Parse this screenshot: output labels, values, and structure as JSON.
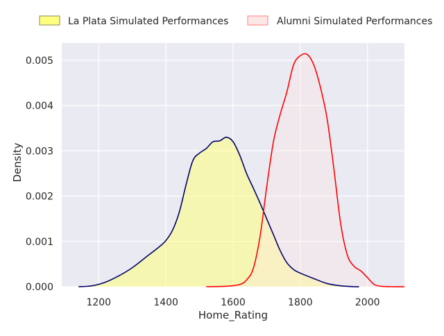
{
  "chart_data": {
    "type": "area",
    "xlabel": "Home_Rating",
    "ylabel": "Density",
    "xlim": [
      1090,
      2110
    ],
    "ylim": [
      0,
      0.00538
    ],
    "x_ticks": [
      1200,
      1400,
      1600,
      1800,
      2000
    ],
    "y_ticks": [
      0.0,
      0.001,
      0.002,
      0.003,
      0.004,
      0.005
    ],
    "y_tick_labels": [
      "0.000",
      "0.001",
      "0.002",
      "0.003",
      "0.004",
      "0.005"
    ],
    "x_tick_labels": [
      "1200",
      "1400",
      "1600",
      "1800",
      "2000"
    ],
    "grid": true,
    "legend_placement": "top",
    "series": [
      {
        "name": "La Plata Simulated Performances",
        "style": "filled-kde",
        "line_color": "#000066",
        "fill_color": "#ffff7f",
        "x": [
          1140,
          1180,
          1220,
          1260,
          1300,
          1340,
          1380,
          1400,
          1420,
          1440,
          1460,
          1480,
          1500,
          1520,
          1540,
          1560,
          1580,
          1600,
          1620,
          1640,
          1660,
          1680,
          1700,
          1720,
          1740,
          1760,
          1780,
          1800,
          1840,
          1880,
          1920,
          1960,
          1975
        ],
        "y": [
          0.0,
          2e-05,
          0.0001,
          0.00024,
          0.00042,
          0.00065,
          0.00088,
          0.00102,
          0.00125,
          0.00165,
          0.00225,
          0.00278,
          0.00295,
          0.00305,
          0.0032,
          0.00322,
          0.0033,
          0.0032,
          0.0029,
          0.0025,
          0.00218,
          0.00185,
          0.0015,
          0.00115,
          0.0008,
          0.00053,
          0.00038,
          0.0003,
          0.00018,
          7e-05,
          2e-05,
          0.0,
          0.0
        ]
      },
      {
        "name": "Alumni Simulated Performances",
        "style": "filled-kde",
        "line_color": "#ff0000",
        "fill_color": "#ffe5e5",
        "x": [
          1520,
          1580,
          1620,
          1640,
          1660,
          1680,
          1700,
          1720,
          1740,
          1760,
          1780,
          1800,
          1820,
          1840,
          1860,
          1880,
          1900,
          1920,
          1940,
          1960,
          1980,
          2000,
          2020,
          2040,
          2070,
          2110
        ],
        "y": [
          0.0,
          1e-05,
          5e-05,
          0.00015,
          0.0004,
          0.0011,
          0.0022,
          0.0032,
          0.0038,
          0.0043,
          0.0049,
          0.0051,
          0.00513,
          0.0049,
          0.0044,
          0.0037,
          0.0026,
          0.0014,
          0.0007,
          0.00045,
          0.00035,
          0.0002,
          5e-05,
          1e-05,
          0.0,
          0.0
        ]
      }
    ]
  }
}
